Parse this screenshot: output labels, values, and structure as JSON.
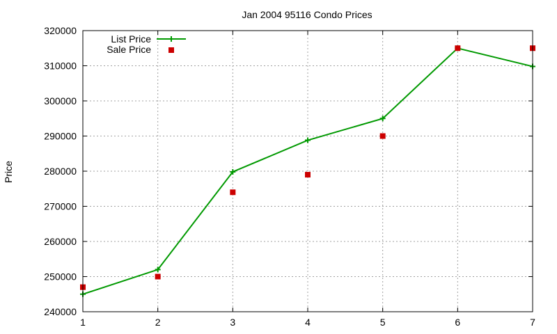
{
  "chart_data": {
    "type": "line",
    "title": "Jan 2004 95116 Condo Prices",
    "xlabel": "",
    "ylabel": "Price",
    "xlim": [
      1,
      7
    ],
    "ylim": [
      240000,
      320000
    ],
    "x_ticks": [
      1,
      2,
      3,
      4,
      5,
      6,
      7
    ],
    "y_ticks": [
      240000,
      250000,
      260000,
      270000,
      280000,
      290000,
      300000,
      310000,
      320000
    ],
    "grid": true,
    "legend_position": "top-left",
    "series": [
      {
        "name": "List Price",
        "style": "line-with-plus-markers",
        "color": "#009900",
        "x": [
          1,
          2,
          3,
          4,
          5,
          6,
          7
        ],
        "values": [
          245000,
          252000,
          279800,
          288800,
          295000,
          315000,
          309800
        ]
      },
      {
        "name": "Sale Price",
        "style": "square-points",
        "color": "#cc0000",
        "x": [
          1,
          2,
          3,
          4,
          5,
          6,
          7
        ],
        "values": [
          247000,
          250000,
          274000,
          279000,
          290000,
          315000,
          315000
        ]
      }
    ]
  }
}
